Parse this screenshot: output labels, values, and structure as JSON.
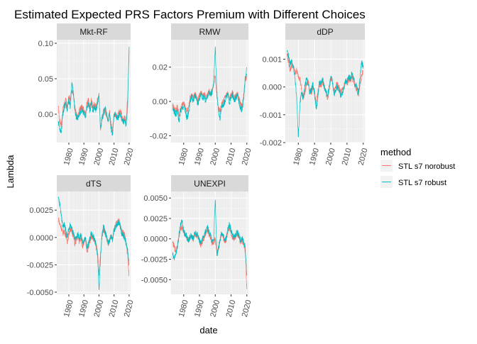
{
  "chart_data": {
    "type": "line",
    "title": "Estimated Expected PRS Factors Premium with Different Choices",
    "xlabel": "date",
    "ylabel": "Lambda",
    "x_ticks": [
      1980,
      1990,
      2000,
      2010,
      2020
    ],
    "x_range": [
      1972,
      2021
    ],
    "grid": true,
    "legend": {
      "title": "method",
      "placement": "right",
      "entries": [
        {
          "label": "STL s7 norobust",
          "color": "#F8766D"
        },
        {
          "label": "STL s7 robust",
          "color": "#00BFC4"
        }
      ]
    },
    "series_colors": {
      "norobust": "#F8766D",
      "robust": "#00BFC4"
    },
    "panels": [
      {
        "name": "Mkt-RF",
        "ylim": [
          -0.04,
          0.105
        ],
        "y_ticks": [
          0.0,
          0.05,
          0.1
        ],
        "y_tick_labels": [
          "0.00",
          "0.05",
          "0.10"
        ],
        "x": [
          1973,
          1974,
          1975,
          1976,
          1977,
          1978,
          1979,
          1980,
          1981,
          1982,
          1983,
          1984,
          1985,
          1986,
          1987,
          1988,
          1989,
          1990,
          1991,
          1992,
          1993,
          1994,
          1995,
          1996,
          1997,
          1998,
          1999,
          2000,
          2001,
          2002,
          2003,
          2004,
          2005,
          2006,
          2007,
          2008,
          2009,
          2010,
          2011,
          2012,
          2013,
          2014,
          2015,
          2016,
          2017,
          2018,
          2019,
          2020
        ],
        "norobust": [
          0.01,
          -0.01,
          -0.015,
          0.005,
          0.015,
          0.02,
          0.01,
          0.025,
          0.02,
          0.035,
          0.03,
          0.01,
          0.0,
          -0.005,
          0.005,
          0.01,
          0.01,
          0.005,
          0.0,
          0.015,
          0.02,
          0.01,
          0.02,
          0.01,
          0.015,
          0.01,
          0.02,
          0.03,
          -0.02,
          -0.01,
          0.005,
          0.005,
          0.0,
          -0.01,
          0.005,
          -0.015,
          -0.025,
          0.0,
          0.0,
          -0.005,
          0.0,
          0.005,
          0.0,
          -0.01,
          -0.005,
          -0.01,
          0.02,
          0.09
        ],
        "robust": [
          -0.01,
          -0.02,
          -0.025,
          0.0,
          0.01,
          0.015,
          0.005,
          0.02,
          0.01,
          0.045,
          0.03,
          0.005,
          -0.005,
          -0.005,
          0.0,
          0.005,
          0.005,
          0.0,
          -0.005,
          0.01,
          0.015,
          0.005,
          0.015,
          0.005,
          0.01,
          0.005,
          0.015,
          0.025,
          -0.02,
          -0.005,
          0.0,
          0.01,
          0.0,
          -0.01,
          0.0,
          -0.02,
          -0.03,
          0.0,
          0.0,
          -0.005,
          -0.005,
          0.0,
          -0.005,
          -0.01,
          -0.01,
          -0.015,
          0.01,
          0.095
        ]
      },
      {
        "name": "RMW",
        "ylim": [
          -0.024,
          0.036
        ],
        "y_ticks": [
          -0.02,
          0.0,
          0.02
        ],
        "y_tick_labels": [
          "-0.02",
          "0.00",
          "0.02"
        ],
        "x": [
          1973,
          1974,
          1975,
          1976,
          1977,
          1978,
          1979,
          1980,
          1981,
          1982,
          1983,
          1984,
          1985,
          1986,
          1987,
          1988,
          1989,
          1990,
          1991,
          1992,
          1993,
          1994,
          1995,
          1996,
          1997,
          1998,
          1999,
          2000,
          2001,
          2002,
          2003,
          2004,
          2005,
          2006,
          2007,
          2008,
          2009,
          2010,
          2011,
          2012,
          2013,
          2014,
          2015,
          2016,
          2017,
          2018,
          2019,
          2020
        ],
        "norobust": [
          -0.002,
          -0.004,
          -0.005,
          -0.003,
          -0.008,
          -0.004,
          -0.002,
          -0.001,
          -0.003,
          -0.006,
          -0.004,
          0.002,
          0.004,
          0.002,
          0.005,
          0.003,
          0.0,
          0.004,
          0.005,
          0.003,
          0.005,
          0.002,
          0.004,
          0.006,
          0.005,
          0.006,
          0.01,
          0.015,
          0.003,
          -0.004,
          -0.006,
          -0.002,
          0.0,
          0.002,
          0.004,
          0.005,
          0.001,
          0.004,
          0.005,
          0.002,
          0.003,
          0.004,
          0.002,
          -0.002,
          -0.003,
          0.004,
          0.012,
          0.015
        ],
        "robust": [
          -0.004,
          -0.006,
          -0.008,
          -0.005,
          -0.012,
          -0.006,
          -0.004,
          -0.003,
          -0.005,
          -0.01,
          -0.007,
          0.0,
          0.003,
          0.0,
          0.004,
          0.001,
          -0.002,
          0.002,
          0.004,
          0.002,
          0.003,
          0.0,
          0.003,
          0.005,
          0.004,
          0.005,
          0.012,
          0.032,
          0.005,
          -0.006,
          -0.01,
          -0.003,
          -0.002,
          0.0,
          0.003,
          0.004,
          -0.001,
          0.002,
          0.004,
          0.0,
          0.002,
          0.003,
          0.0,
          -0.004,
          -0.005,
          0.002,
          0.014,
          0.02
        ]
      },
      {
        "name": "dDP",
        "ylim": [
          -0.002,
          0.0017
        ],
        "y_ticks": [
          -0.002,
          -0.001,
          0.0,
          0.001
        ],
        "y_tick_labels": [
          "-0.002",
          "-0.001",
          "0.000",
          "0.001"
        ],
        "x": [
          1973,
          1974,
          1975,
          1976,
          1977,
          1978,
          1979,
          1980,
          1981,
          1982,
          1983,
          1984,
          1985,
          1986,
          1987,
          1988,
          1989,
          1990,
          1991,
          1992,
          1993,
          1994,
          1995,
          1996,
          1997,
          1998,
          1999,
          2000,
          2001,
          2002,
          2003,
          2004,
          2005,
          2006,
          2007,
          2008,
          2009,
          2010,
          2011,
          2012,
          2013,
          2014,
          2015,
          2016,
          2017,
          2018,
          2019,
          2020
        ],
        "norobust": [
          0.0012,
          0.0009,
          0.0006,
          0.0008,
          0.0007,
          0.0005,
          0.0006,
          0.0004,
          0.0003,
          -0.0001,
          -0.0004,
          -0.0002,
          0.0001,
          0.0002,
          -0.0001,
          -0.0002,
          0.0,
          -0.0003,
          -0.0006,
          -0.0002,
          0.0001,
          0.0,
          0.0002,
          0.0,
          -0.0002,
          -0.0004,
          -0.0001,
          0.0003,
          0.0002,
          -0.0002,
          0.0,
          0.0001,
          0.0,
          -0.0002,
          -0.0001,
          0.0,
          0.0002,
          0.0001,
          0.0003,
          0.0002,
          0.0004,
          0.0002,
          0.0,
          -0.0001,
          -0.0003,
          0.0001,
          0.0004,
          0.0006
        ],
        "robust": [
          0.0013,
          0.0011,
          0.0008,
          0.0009,
          0.0007,
          0.0003,
          -0.0004,
          -0.0018,
          -0.0006,
          -0.0002,
          -0.0004,
          0.0,
          0.0003,
          0.0001,
          -0.0002,
          -0.0001,
          0.0001,
          -0.0002,
          -0.0008,
          -0.0004,
          0.0002,
          0.0001,
          0.0003,
          0.0,
          -0.0002,
          -0.0003,
          0.0,
          0.0004,
          0.0002,
          -0.0003,
          -0.0001,
          0.0,
          -0.0001,
          -0.0003,
          -0.0002,
          -0.0001,
          0.0002,
          0.0002,
          0.0004,
          0.0003,
          0.0005,
          0.0003,
          0.0001,
          0.0,
          -0.0002,
          0.0003,
          0.0009,
          0.0007
        ]
      },
      {
        "name": "dTS",
        "ylim": [
          -0.0052,
          0.0042
        ],
        "y_ticks": [
          -0.005,
          -0.0025,
          0.0,
          0.0025
        ],
        "y_tick_labels": [
          "-0.0050",
          "-0.0025",
          "0.0000",
          "0.0025"
        ],
        "x": [
          1973,
          1974,
          1975,
          1976,
          1977,
          1978,
          1979,
          1980,
          1981,
          1982,
          1983,
          1984,
          1985,
          1986,
          1987,
          1988,
          1989,
          1990,
          1991,
          1992,
          1993,
          1994,
          1995,
          1996,
          1997,
          1998,
          1999,
          2000,
          2001,
          2002,
          2003,
          2004,
          2005,
          2006,
          2007,
          2008,
          2009,
          2010,
          2011,
          2012,
          2013,
          2014,
          2015,
          2016,
          2017,
          2018,
          2019,
          2020
        ],
        "norobust": [
          0.0018,
          0.0012,
          0.0009,
          0.0004,
          0.0006,
          0.0002,
          -0.0004,
          0.0003,
          0.0008,
          0.0005,
          0.0002,
          -0.0006,
          -0.0002,
          0.0001,
          -0.0004,
          0.0,
          -0.0008,
          -0.0005,
          -0.0002,
          -0.0012,
          -0.001,
          -0.0003,
          0.0002,
          0.0,
          -0.0003,
          -0.0006,
          -0.0012,
          -0.0035,
          -0.0015,
          0.0002,
          0.0008,
          0.0004,
          0.0,
          -0.0006,
          -0.0003,
          0.0002,
          -0.0002,
          0.0008,
          0.0011,
          0.0014,
          0.0016,
          0.0012,
          0.0006,
          0.0004,
          0.0002,
          -0.0004,
          -0.0015,
          -0.0035
        ],
        "robust": [
          0.0036,
          0.003,
          0.002,
          0.001,
          0.0012,
          0.0006,
          0.0,
          0.0008,
          0.0012,
          0.0008,
          0.0004,
          -0.0002,
          0.0,
          0.0004,
          -0.0002,
          0.0004,
          -0.0005,
          -0.0003,
          0.0,
          -0.001,
          -0.0006,
          0.0,
          0.0004,
          0.0002,
          -0.0001,
          -0.0008,
          -0.0015,
          -0.0048,
          -0.002,
          0.0002,
          0.001,
          0.0005,
          0.0001,
          -0.0005,
          -0.0004,
          0.0001,
          -0.0003,
          0.0006,
          0.001,
          0.0012,
          0.0014,
          0.0011,
          0.0004,
          0.0002,
          0.0,
          -0.0006,
          -0.0012,
          -0.0025
        ]
      },
      {
        "name": "UNEXPI",
        "ylim": [
          -0.0068,
          0.0058
        ],
        "y_ticks": [
          -0.005,
          -0.0025,
          0.0,
          0.0025,
          0.005
        ],
        "y_tick_labels": [
          "-0.0050",
          "-0.0025",
          "0.0000",
          "0.0025",
          "0.0050"
        ],
        "x": [
          1973,
          1974,
          1975,
          1976,
          1977,
          1978,
          1979,
          1980,
          1981,
          1982,
          1983,
          1984,
          1985,
          1986,
          1987,
          1988,
          1989,
          1990,
          1991,
          1992,
          1993,
          1994,
          1995,
          1996,
          1997,
          1998,
          1999,
          2000,
          2001,
          2002,
          2003,
          2004,
          2005,
          2006,
          2007,
          2008,
          2009,
          2010,
          2011,
          2012,
          2013,
          2014,
          2015,
          2016,
          2017,
          2018,
          2019,
          2020
        ],
        "norobust": [
          -0.0005,
          -0.001,
          -0.0015,
          -0.0008,
          0.0002,
          0.0012,
          0.0015,
          0.0008,
          0.0005,
          0.0002,
          -0.0002,
          0.0001,
          0.0003,
          -0.0001,
          0.0006,
          0.0004,
          0.0002,
          -0.0004,
          -0.0008,
          -0.0002,
          0.0002,
          0.0008,
          0.0012,
          0.0006,
          0.0002,
          -0.0006,
          -0.0004,
          0.0,
          -0.0018,
          -0.0012,
          -0.0002,
          0.0006,
          0.0002,
          -0.0004,
          0.0,
          0.001,
          0.0015,
          0.0008,
          0.0002,
          0.0,
          0.0003,
          0.0006,
          0.0002,
          -0.0004,
          -0.0002,
          -0.0006,
          -0.0015,
          -0.0062
        ],
        "robust": [
          -0.002,
          -0.0025,
          -0.002,
          -0.001,
          0.0006,
          0.0018,
          0.0022,
          0.001,
          0.0006,
          0.0003,
          -0.0003,
          0.0002,
          0.0004,
          0.0,
          0.0008,
          0.0006,
          0.0004,
          -0.0003,
          -0.0006,
          0.0,
          0.0004,
          0.001,
          0.0015,
          0.0008,
          0.0004,
          -0.0004,
          0.0,
          0.0048,
          -0.002,
          -0.0012,
          -0.0002,
          0.0008,
          0.0004,
          -0.0002,
          0.0002,
          0.0012,
          0.0018,
          0.001,
          0.0004,
          0.0002,
          0.0005,
          0.0008,
          0.0004,
          -0.0002,
          0.0,
          -0.0004,
          -0.001,
          -0.0045
        ]
      }
    ]
  }
}
